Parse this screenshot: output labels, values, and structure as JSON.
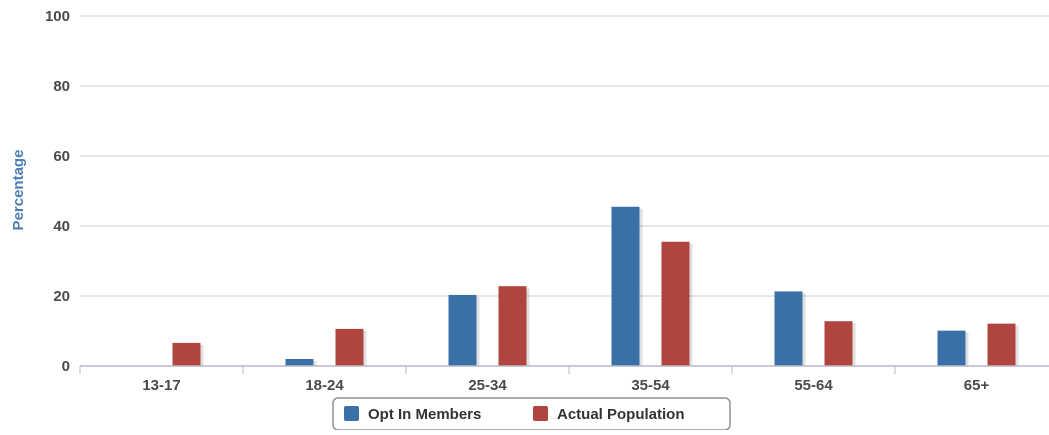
{
  "chart_data": {
    "type": "bar",
    "title": "",
    "xlabel": "",
    "ylabel": "Percentage",
    "ylim": [
      0,
      100
    ],
    "yticks": [
      0,
      20,
      40,
      60,
      80,
      100
    ],
    "categories": [
      "13-17",
      "18-24",
      "25-34",
      "35-54",
      "55-64",
      "65+"
    ],
    "series": [
      {
        "name": "Opt In Members",
        "values": [
          0,
          2,
          20.3,
          45.5,
          21.3,
          10.1
        ],
        "color": "#3a6fa8"
      },
      {
        "name": "Actual Population",
        "values": [
          6.6,
          10.6,
          22.8,
          35.5,
          12.8,
          12.1
        ],
        "color": "#b0443e"
      }
    ],
    "grid": true,
    "legend_position": "bottom-center"
  }
}
